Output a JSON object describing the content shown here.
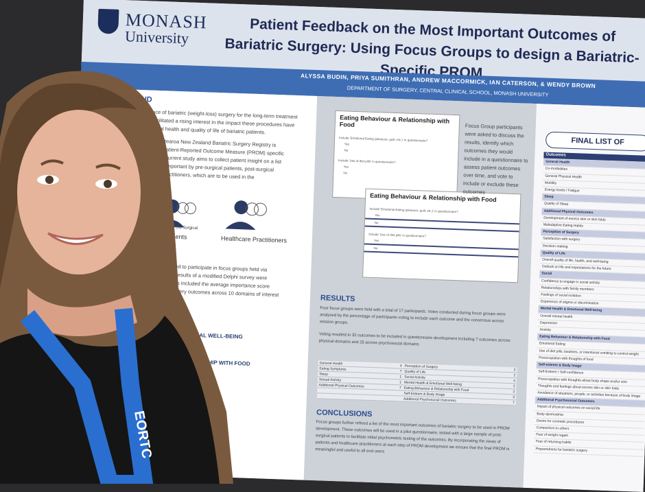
{
  "logo": {
    "name": "MONASH",
    "sub": "University"
  },
  "title": "Patient Feedback on the Most Important Outcomes of Bariatric Surgery: Using Focus Groups to design a Bariatric-Specific PROM",
  "authors": "ALYSSA BUDIN, PRIYA SUMITHRAN, ANDREW MACCORMICK, IAN CATERSON, & WENDY BROWN",
  "department": "DEPARTMENT OF SURGERY, CENTRAL CLINICAL SCHOOL, MONASH UNIVERSITY",
  "background": {
    "heading": "CKGROUND",
    "lines": [
      "lence of bariatric (weight-loss) surgery for the long-term treatment",
      "s facilitated a rising interest in the impact these procedures have",
      "osocial health and quality of life of bariatric patients.",
      "land Aotearoa New Zealand Bariatric Surgery Registry is",
      "ping a Patient-Reported Outcome Measure (PROM) specific",
      "es. The current study aims to collect patient insight on a list",
      "d highly important by pre-surgical patients, post-surgical",
      "thcare practitioners, which are to be used in the",
      "PROM."
    ]
  },
  "participants": {
    "post_surgical": "Post-Surgical",
    "patients": "Patients",
    "practitioners": "Healthcare Practitioners"
  },
  "methods": {
    "lines": [
      "were invited to participate in focus groups held via",
      "roups the results of a modified Delphi survey were",
      "nts. Results included the average importance score",
      "ariatric surgery outcomes across 10 domains of interest"
    ],
    "domains": [
      "OTIONAL WELL-BEING",
      "ELATIONSHIP WITH FOOD",
      "ACE"
    ]
  },
  "figures": [
    {
      "title": "Eating Behaviour & Relationship with Food",
      "items": [
        "Include 'Emotional Eating (pleasure, guilt, etc.)' in questionnaire?",
        "Yes",
        "No",
        "Include 'Use of diet pills' in questionnaire?",
        "Yes",
        "No"
      ]
    },
    {
      "title": "Eating Behaviour & Relationship with Food",
      "items": [
        "Include 'Emotional Eating (pleasure, guilt, etc.)' in questionnaire?",
        "Yes",
        "No",
        "Include 'Use of diet pills' in questionnaire?",
        "Yes",
        "No"
      ]
    }
  ],
  "focus_text": "Focus Group participants were asked to discuss the results, identify which outcomes they would include in a questionnaire to assess patient outcomes over time, and vote to include or exclude these outcomes",
  "results": {
    "heading": "RESULTS",
    "paragraphs": [
      "Four focus groups were held with a total of 17 participants. Votes conducted during focus groups were analysed by the percentage of participants voting to include each outcome and the consensus across session groups.",
      "Voting resulted in 32 outcomes to be included in questionnaire development including 7 outcomes across physical domains and 25 across psychosocial domains."
    ],
    "table": [
      [
        "General Health",
        "4",
        "Perception of Surgery",
        "2"
      ],
      [
        "Eating Symptoms",
        "7",
        "Quality of Life",
        "2"
      ],
      [
        "Sleep",
        "1",
        "Social Activity",
        "4"
      ],
      [
        "Sexual Activity",
        "1",
        "Mental Health & Emotional Well-being",
        "2"
      ],
      [
        "Additional Physical Outcomes",
        "7",
        "Eating Behaviour & Relationship with Food",
        "2"
      ],
      [
        "",
        "",
        "Self-Esteem & Body Image",
        "3"
      ],
      [
        "",
        "",
        "Additional Psychosocial Outcomes",
        "7"
      ]
    ]
  },
  "conclusions": {
    "heading": "CONCLUSIONS",
    "text": "Focus groups further refined a list of the most important outcomes of bariatric surgery to be used in PROM development. These outcomes will be used in a pilot questionnaire, tested with a large sample of post-surgical patients to facilitate initial psychometric testing of the outcomes. By incorporating the views of patients and healthcare practitioners at each step of PROM development we ensure that the final PROM is meaningful and useful to all end users"
  },
  "final_list": {
    "heading": "FINAL LIST OF",
    "items": [
      {
        "text": "Outcomes",
        "kind": "head"
      },
      {
        "text": "General Health",
        "kind": "domain"
      },
      {
        "text": "Co-morbidities",
        "kind": "item"
      },
      {
        "text": "General Physical Health",
        "kind": "item"
      },
      {
        "text": "Mobility",
        "kind": "item"
      },
      {
        "text": "Energy levels / Fatigue",
        "kind": "item"
      },
      {
        "text": "Sleep",
        "kind": "domain"
      },
      {
        "text": "Quality of Sleep",
        "kind": "item"
      },
      {
        "text": "Additional Physical Outcomes",
        "kind": "domain"
      },
      {
        "text": "Development of excess skin or skin folds",
        "kind": "item"
      },
      {
        "text": "Maladaptive Eating Habits",
        "kind": "item"
      },
      {
        "text": "Perception of Surgery",
        "kind": "domain"
      },
      {
        "text": "Satisfaction with surgery",
        "kind": "item"
      },
      {
        "text": "Decision making",
        "kind": "item"
      },
      {
        "text": "Quality of Life",
        "kind": "domain"
      },
      {
        "text": "Overall quality of life, health, and well-being",
        "kind": "item"
      },
      {
        "text": "Outlook on life and expectations for the future",
        "kind": "item"
      },
      {
        "text": "Social",
        "kind": "domain"
      },
      {
        "text": "Confidence to engage in social activity",
        "kind": "item"
      },
      {
        "text": "Relationships with family members",
        "kind": "item"
      },
      {
        "text": "Feelings of social isolation",
        "kind": "item"
      },
      {
        "text": "Experience of stigma or discrimination",
        "kind": "item"
      },
      {
        "text": "Mental Health & Emotional Well-being",
        "kind": "domain"
      },
      {
        "text": "Overall mental health",
        "kind": "item"
      },
      {
        "text": "Depression",
        "kind": "item"
      },
      {
        "text": "Anxiety",
        "kind": "item"
      },
      {
        "text": "Eating Behaviour & Relationship with Food",
        "kind": "domain"
      },
      {
        "text": "Emotional Eating",
        "kind": "item"
      },
      {
        "text": "Use of diet pills, laxatives, or intentional vomiting to control weight",
        "kind": "item"
      },
      {
        "text": "Preoccupation with thoughts of food",
        "kind": "item"
      },
      {
        "text": "Self-esteem & Body Image",
        "kind": "domain"
      },
      {
        "text": "Self-Esteem / Self-confidence",
        "kind": "item"
      },
      {
        "text": "Preoccupation with thoughts about body shape and/or size",
        "kind": "item"
      },
      {
        "text": "Thoughts and feelings about excess skin or skin folds",
        "kind": "item"
      },
      {
        "text": "Avoidance of situations, people, or activities because of body image",
        "kind": "item"
      },
      {
        "text": "Additional Psychosocial Outcomes",
        "kind": "domain"
      },
      {
        "text": "Impact of physical outcomes on social life",
        "kind": "item"
      },
      {
        "text": "Body dysmorphia",
        "kind": "item"
      },
      {
        "text": "Desire for cosmetic procedures",
        "kind": "item"
      },
      {
        "text": "Comparison to others",
        "kind": "item"
      },
      {
        "text": "Fear of weight regain",
        "kind": "item"
      },
      {
        "text": "Fear of returning habits",
        "kind": "item"
      },
      {
        "text": "Preparedness for bariatric surgery",
        "kind": "item"
      }
    ]
  },
  "lanyard": "EORTC"
}
